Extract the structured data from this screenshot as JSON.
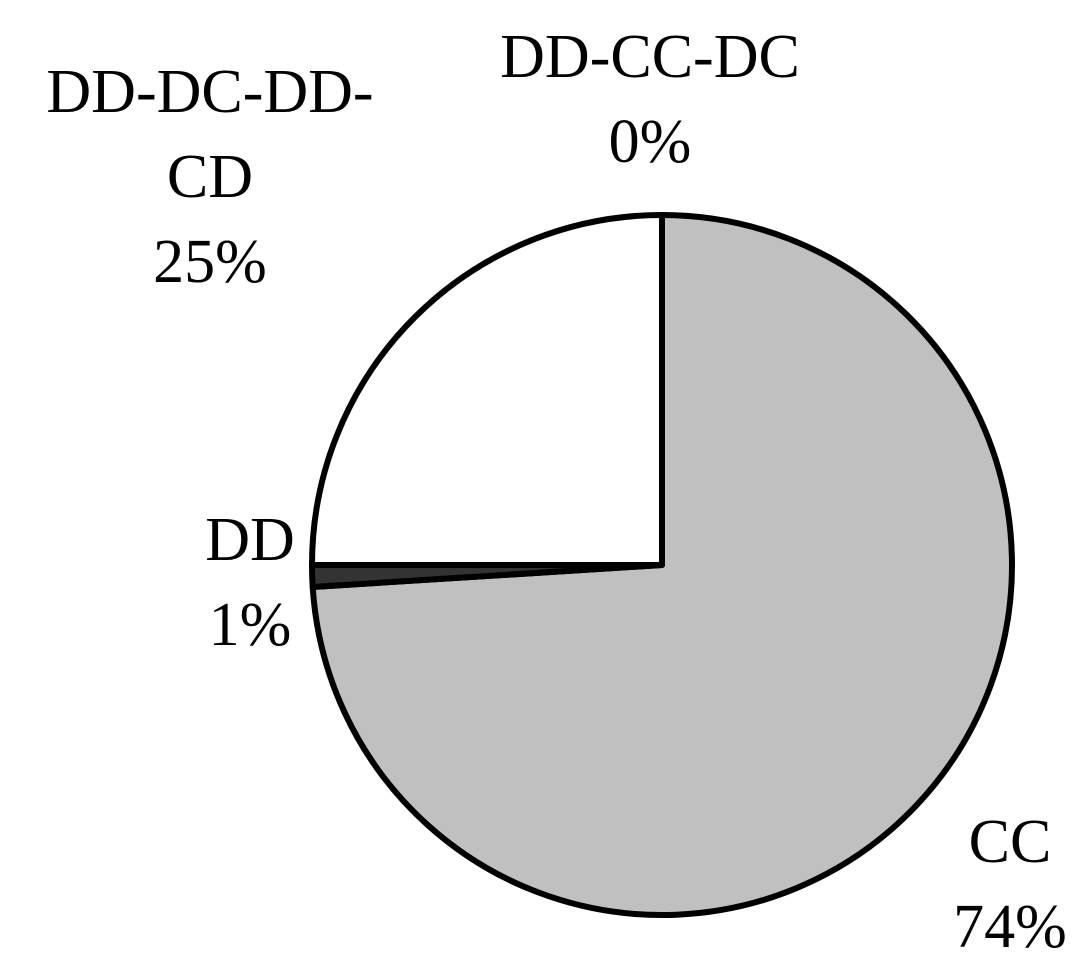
{
  "chart_data": {
    "type": "pie",
    "categories": [
      "CC",
      "DD",
      "DD-DC-DD-CD",
      "DD-CC-DC"
    ],
    "values": [
      74,
      1,
      25,
      0
    ],
    "value_labels": [
      "74%",
      "1%",
      "25%",
      "0%"
    ],
    "colors": [
      "#c0c0c0",
      "#333333",
      "#ffffff",
      "#808080"
    ]
  }
}
